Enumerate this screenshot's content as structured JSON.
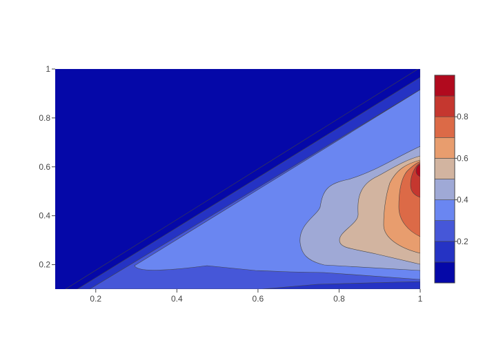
{
  "chart_data": {
    "type": "contour",
    "x_range": [
      0.1,
      1.0
    ],
    "y_range": [
      0.1,
      1.0
    ],
    "x_ticks": [
      {
        "value": 0.2,
        "label": "0.2"
      },
      {
        "value": 0.4,
        "label": "0.4"
      },
      {
        "value": 0.6,
        "label": "0.6"
      },
      {
        "value": 0.8,
        "label": "0.8"
      },
      {
        "value": 1.0,
        "label": "1"
      }
    ],
    "y_ticks": [
      {
        "value": 0.2,
        "label": "0.2"
      },
      {
        "value": 0.4,
        "label": "0.4"
      },
      {
        "value": 0.6,
        "label": "0.6"
      },
      {
        "value": 0.8,
        "label": "0.8"
      },
      {
        "value": 1.0,
        "label": "1"
      }
    ],
    "levels": [
      0.05,
      0.15,
      0.25,
      0.35,
      0.45,
      0.55,
      0.65,
      0.75,
      0.85,
      0.95
    ],
    "level_colors": [
      "#0508a8",
      "#2533c4",
      "#4657d8",
      "#6a86f1",
      "#9fa9d6",
      "#d2b4a0",
      "#e89d6e",
      "#dc6a47",
      "#c5372f",
      "#b10a1e"
    ],
    "colorbar_range": [
      0,
      1.0
    ],
    "colorbar_ticks": [
      {
        "value": 0.2,
        "label": "0.2"
      },
      {
        "value": 0.4,
        "label": "0.4"
      },
      {
        "value": 0.6,
        "label": "0.6"
      },
      {
        "value": 0.8,
        "label": "0.8"
      }
    ],
    "grid": false,
    "title": "",
    "xlabel": "",
    "ylabel": ""
  }
}
